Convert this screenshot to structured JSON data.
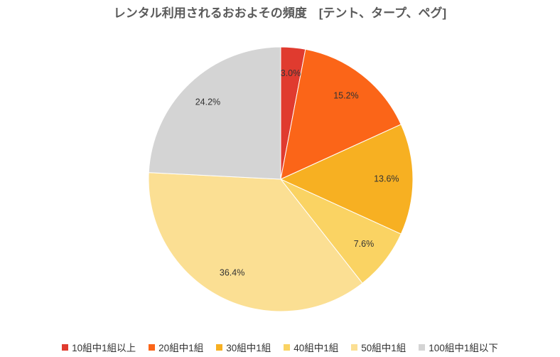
{
  "chart_data": {
    "type": "pie",
    "title": "レンタル利用されるおおよその頻度　[テント、タープ、ペグ]",
    "categories": [
      "10組中1組以上",
      "20組中1組",
      "30組中1組",
      "40組中1組",
      "50組中1組",
      "100組中1組以下"
    ],
    "values": [
      3.0,
      15.2,
      13.6,
      7.6,
      36.4,
      24.2
    ],
    "labels": [
      "3.0%",
      "15.2%",
      "13.6%",
      "7.6%",
      "36.4%",
      "24.2%"
    ],
    "colors": [
      "#e03b2f",
      "#fb6518",
      "#f7b022",
      "#fad363",
      "#fbdf93",
      "#d4d4d4"
    ],
    "legend_position": "bottom"
  }
}
